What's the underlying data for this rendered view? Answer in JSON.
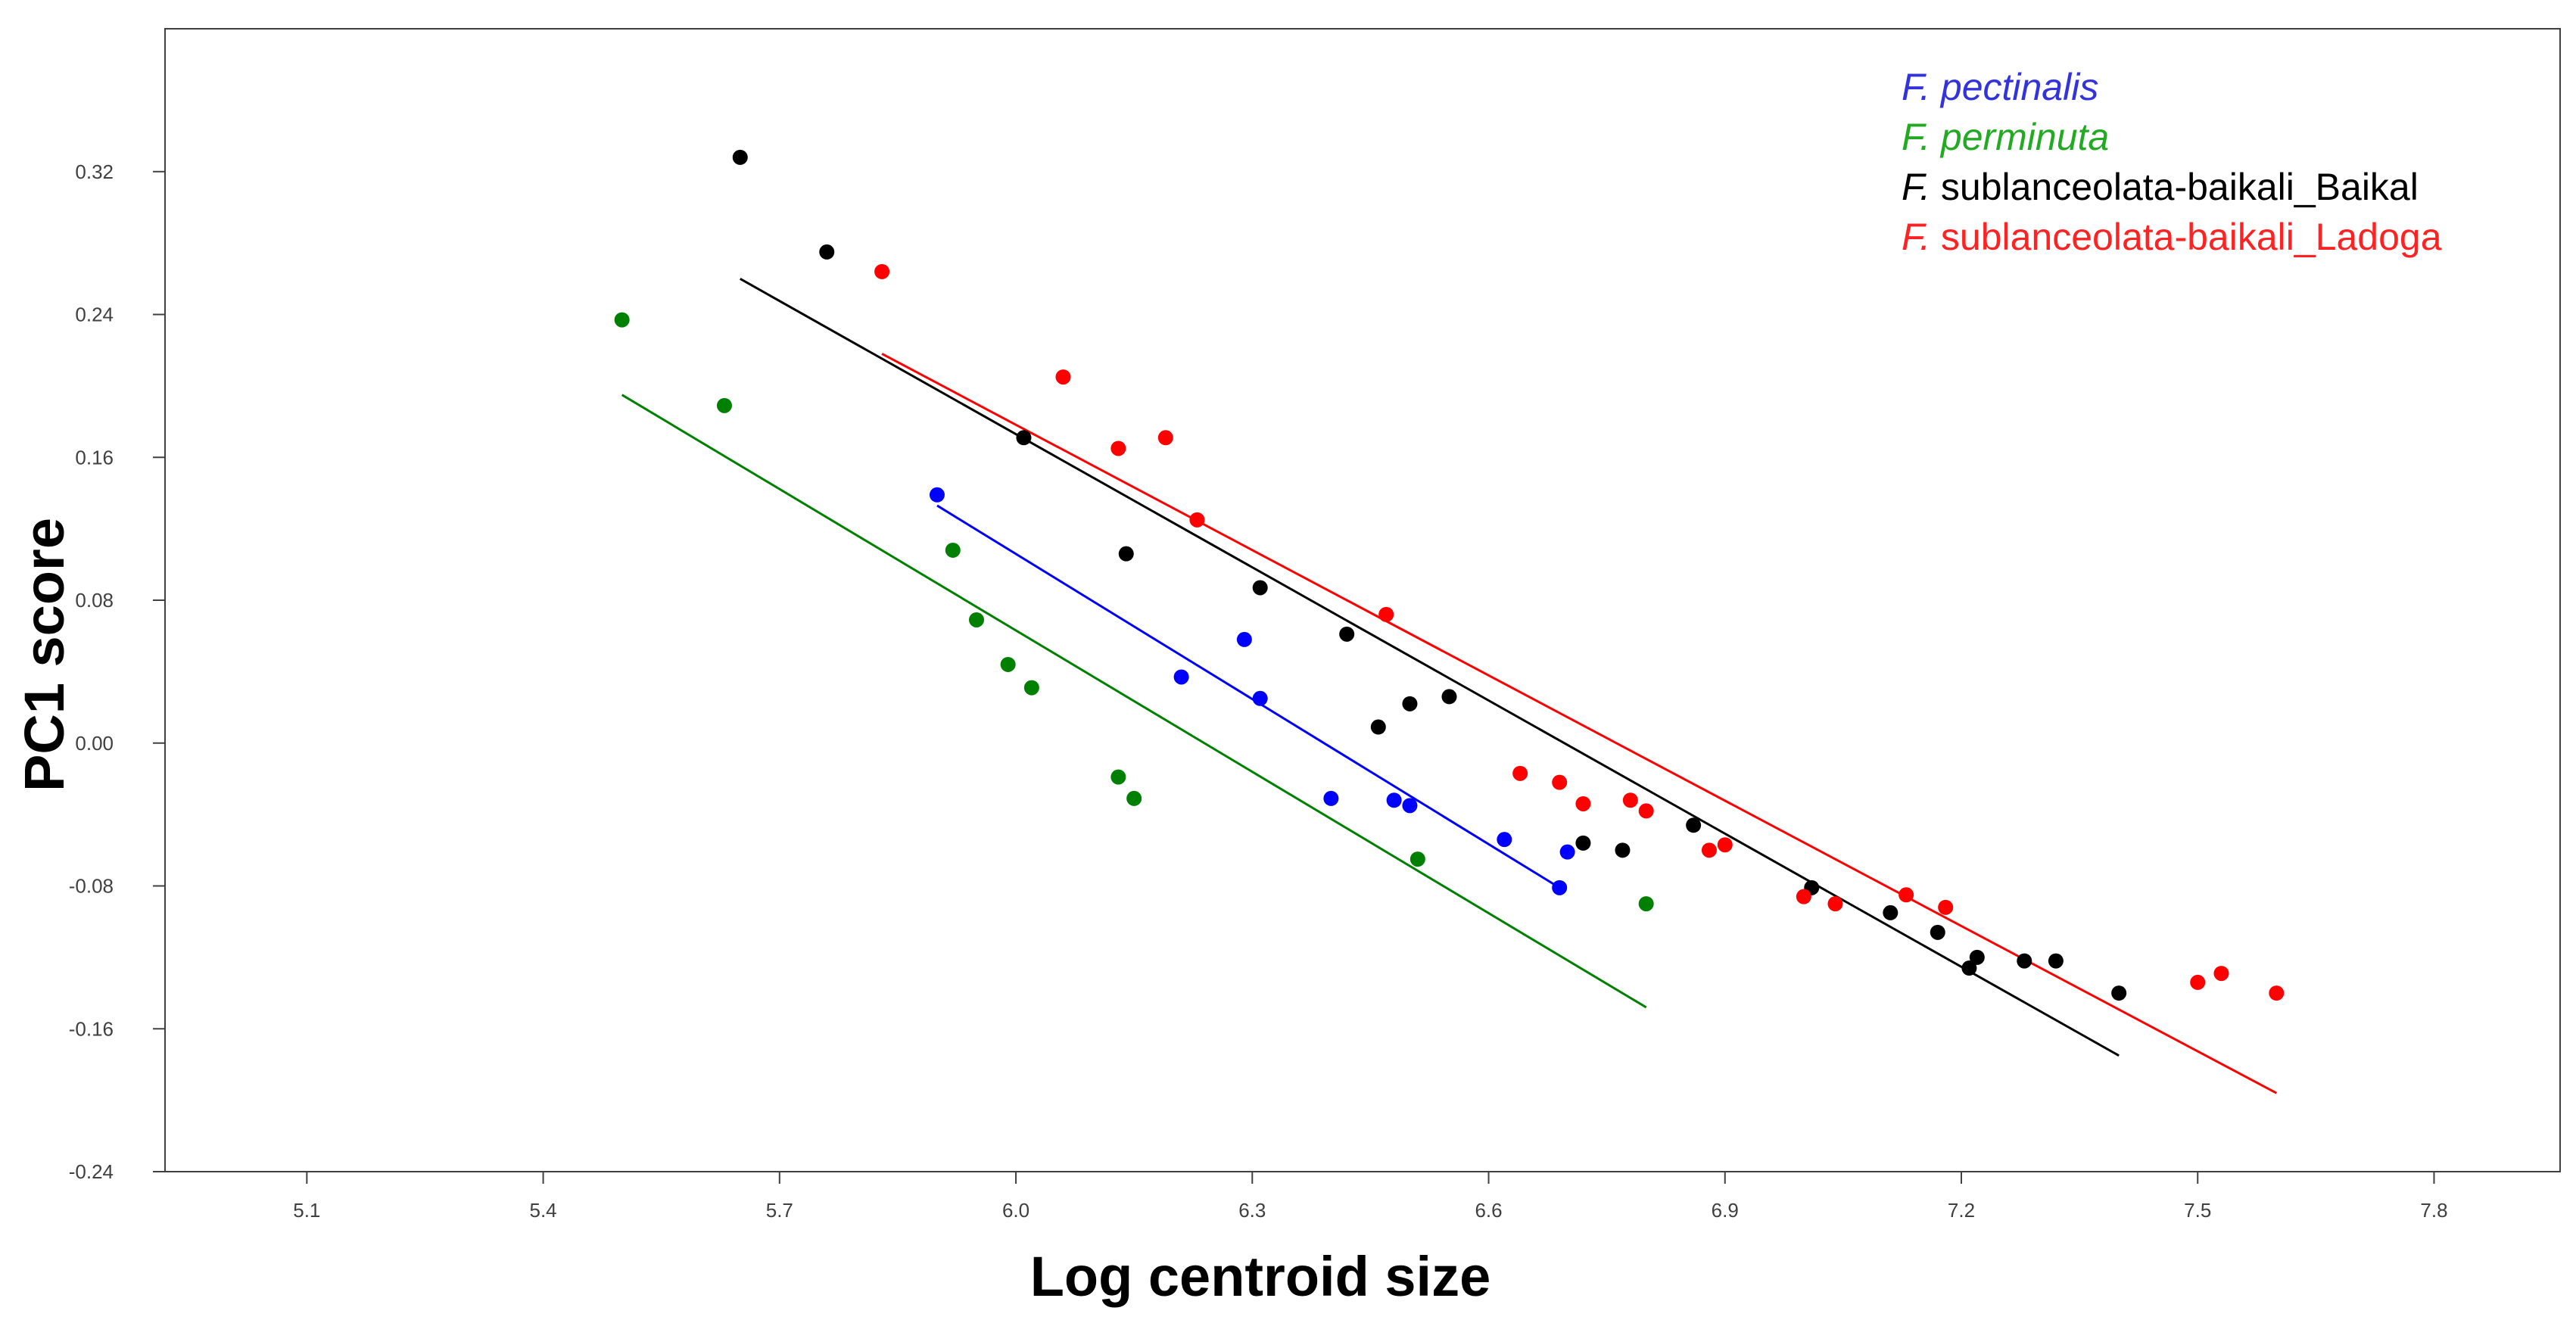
{
  "chart_data": {
    "type": "scatter",
    "title": "",
    "xlabel": "Log centroid size",
    "ylabel": "PC1 score",
    "xlim": [
      4.92,
      7.96
    ],
    "ylim": [
      -0.24,
      0.4
    ],
    "xticks": [
      5.1,
      5.4,
      5.7,
      6.0,
      6.3,
      6.6,
      6.9,
      7.2,
      7.5,
      7.8
    ],
    "xtick_labels": [
      "5.1",
      "5.4",
      "5.7",
      "6.0",
      "6.3",
      "6.6",
      "6.9",
      "7.2",
      "7.5",
      "7.8"
    ],
    "yticks": [
      -0.24,
      -0.16,
      -0.08,
      0.0,
      0.08,
      0.16,
      0.24,
      0.32
    ],
    "ytick_labels": [
      "-0.24",
      "-0.16",
      "-0.08",
      "0.00",
      "0.08",
      "0.16",
      "0.24",
      "0.32"
    ],
    "grid": false,
    "legend_position": "top-right",
    "series": [
      {
        "name": "F. pectinalis",
        "italic_part": "F. pectinalis",
        "color": "#0000ff",
        "legend_color": "#3333dd",
        "points": [
          [
            5.9,
            0.139
          ],
          [
            6.21,
            0.037
          ],
          [
            6.29,
            0.058
          ],
          [
            6.31,
            0.025
          ],
          [
            6.4,
            -0.031
          ],
          [
            6.48,
            -0.032
          ],
          [
            6.5,
            -0.035
          ],
          [
            6.62,
            -0.054
          ],
          [
            6.69,
            -0.081
          ],
          [
            6.7,
            -0.061
          ]
        ],
        "fit": [
          [
            5.9,
            0.133
          ],
          [
            6.69,
            -0.081
          ]
        ]
      },
      {
        "name": "F. perminuta",
        "italic_part": "F. perminuta",
        "color": "#008000",
        "legend_color": "#22aa22",
        "points": [
          [
            5.5,
            0.237
          ],
          [
            5.63,
            0.189
          ],
          [
            5.92,
            0.108
          ],
          [
            5.95,
            0.069
          ],
          [
            5.99,
            0.044
          ],
          [
            6.02,
            0.031
          ],
          [
            6.13,
            -0.019
          ],
          [
            6.15,
            -0.031
          ],
          [
            6.51,
            -0.065
          ],
          [
            6.8,
            -0.09
          ]
        ],
        "fit": [
          [
            5.5,
            0.195
          ],
          [
            6.8,
            -0.148
          ]
        ]
      },
      {
        "name": "F. sublanceolata-baikali_Baikal",
        "italic_part": "F.",
        "rest_part": " sublanceolata-baikali_Baikal",
        "color": "#000000",
        "legend_color": "#000000",
        "points": [
          [
            5.65,
            0.328
          ],
          [
            5.76,
            0.275
          ],
          [
            6.01,
            0.171
          ],
          [
            6.14,
            0.106
          ],
          [
            6.31,
            0.087
          ],
          [
            6.42,
            0.061
          ],
          [
            6.46,
            0.009
          ],
          [
            6.5,
            0.022
          ],
          [
            6.55,
            0.026
          ],
          [
            6.72,
            -0.056
          ],
          [
            6.77,
            -0.06
          ],
          [
            6.86,
            -0.046
          ],
          [
            7.01,
            -0.081
          ],
          [
            7.11,
            -0.095
          ],
          [
            7.17,
            -0.106
          ],
          [
            7.21,
            -0.126
          ],
          [
            7.22,
            -0.12
          ],
          [
            7.28,
            -0.122
          ],
          [
            7.32,
            -0.122
          ],
          [
            7.4,
            -0.14
          ]
        ],
        "fit": [
          [
            5.65,
            0.26
          ],
          [
            7.4,
            -0.175
          ]
        ]
      },
      {
        "name": "F. sublanceolata-baikali_Ladoga",
        "italic_part": "F.",
        "rest_part": " sublanceolata-baikali_Ladoga",
        "color": "#ff0000",
        "legend_color": "#ff2222",
        "points": [
          [
            5.83,
            0.264
          ],
          [
            6.06,
            0.205
          ],
          [
            6.13,
            0.165
          ],
          [
            6.19,
            0.171
          ],
          [
            6.23,
            0.125
          ],
          [
            6.47,
            0.072
          ],
          [
            6.64,
            -0.017
          ],
          [
            6.69,
            -0.022
          ],
          [
            6.72,
            -0.034
          ],
          [
            6.78,
            -0.032
          ],
          [
            6.8,
            -0.038
          ],
          [
            6.88,
            -0.06
          ],
          [
            6.9,
            -0.057
          ],
          [
            7.0,
            -0.086
          ],
          [
            7.04,
            -0.09
          ],
          [
            7.13,
            -0.085
          ],
          [
            7.18,
            -0.092
          ],
          [
            7.5,
            -0.134
          ],
          [
            7.53,
            -0.129
          ],
          [
            7.6,
            -0.14
          ]
        ],
        "fit": [
          [
            5.83,
            0.218
          ],
          [
            7.6,
            -0.196
          ]
        ]
      }
    ]
  }
}
